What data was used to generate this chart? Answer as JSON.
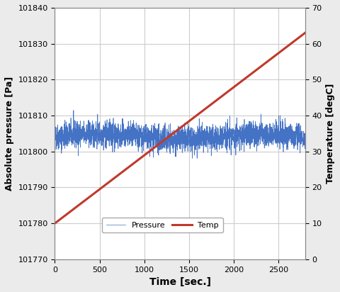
{
  "title": "",
  "xlabel": "Time [sec.]",
  "ylabel_left": "Absolute pressure [Pa]",
  "ylabel_right": "Temperature [degC]",
  "xlim": [
    0,
    2800
  ],
  "ylim_left": [
    101770,
    101840
  ],
  "ylim_right": [
    0,
    70
  ],
  "xticks": [
    0,
    500,
    1000,
    1500,
    2000,
    2500
  ],
  "yticks_left": [
    101770,
    101780,
    101790,
    101800,
    101810,
    101820,
    101830,
    101840
  ],
  "yticks_right": [
    0,
    10,
    20,
    30,
    40,
    50,
    60,
    70
  ],
  "pressure_base": 101804.0,
  "pressure_noise_amp": 1.8,
  "temp_x_start": 0,
  "temp_x_end": 2800,
  "temp_y_start": 10,
  "temp_y_end": 63,
  "pressure_color": "#4472C4",
  "temp_color": "#C0392B",
  "legend_pressure": "Pressure",
  "legend_temp": "Temp",
  "grid_color": "#CCCCCC",
  "background_color": "#FFFFFF",
  "fig_background": "#EBEBEB",
  "pressure_linewidth": 0.5,
  "temp_linewidth": 2.2,
  "n_points": 2800,
  "random_seed": 42,
  "ylabel_left_fontsize": 9,
  "ylabel_right_fontsize": 9,
  "xlabel_fontsize": 10,
  "tick_fontsize": 8,
  "legend_fontsize": 8
}
